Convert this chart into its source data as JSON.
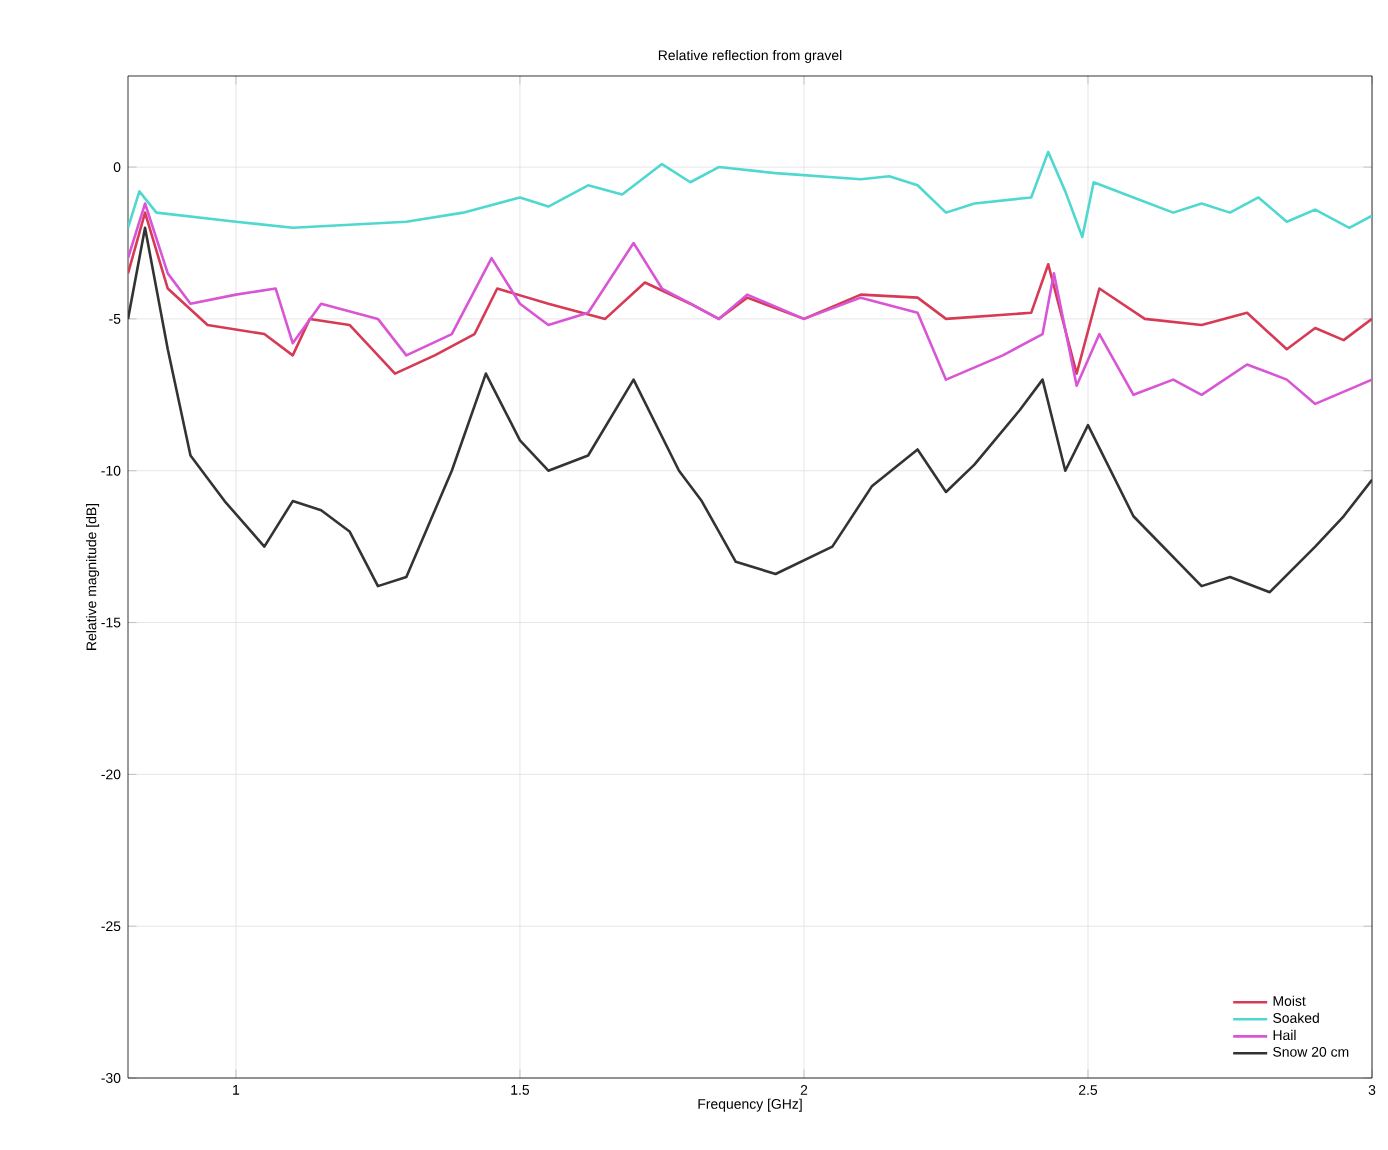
{
  "chart_data": {
    "type": "line",
    "title": "Relative reflection from gravel",
    "xlabel": "Frequency [GHz]",
    "ylabel": "Relative magnitude [dB]",
    "xlim": [
      0.81,
      3
    ],
    "xticks": [
      1,
      1.5,
      2,
      2.5,
      3
    ],
    "ylim": [
      -30,
      3
    ],
    "yticks": [
      -30,
      -25,
      -20,
      -15,
      -10,
      -5,
      0
    ],
    "grid": true,
    "legend": "bottom right",
    "line_style": "solid",
    "marker": "none",
    "series": [
      {
        "name": "Moist",
        "color": "#d63a55",
        "x": [
          0.81,
          0.84,
          0.88,
          0.95,
          1.05,
          1.1,
          1.13,
          1.2,
          1.28,
          1.35,
          1.42,
          1.46,
          1.55,
          1.65,
          1.72,
          1.8,
          1.85,
          1.9,
          2.0,
          2.1,
          2.2,
          2.25,
          2.4,
          2.43,
          2.48,
          2.52,
          2.6,
          2.7,
          2.78,
          2.85,
          2.9,
          2.95,
          3.0
        ],
        "values": [
          -3.5,
          -1.5,
          -4,
          -5.2,
          -5.5,
          -6.2,
          -5,
          -5.2,
          -6.8,
          -6.2,
          -5.5,
          -4,
          -4.5,
          -5,
          -3.8,
          -4.5,
          -5,
          -4.3,
          -5,
          -4.2,
          -4.3,
          -5,
          -4.8,
          -3.2,
          -6.8,
          -4,
          -5,
          -5.2,
          -4.8,
          -6,
          -5.3,
          -5.7,
          -5
        ]
      },
      {
        "name": "Soaked",
        "color": "#4fd8d0",
        "x": [
          0.81,
          0.83,
          0.86,
          1.0,
          1.1,
          1.3,
          1.4,
          1.5,
          1.55,
          1.62,
          1.68,
          1.75,
          1.8,
          1.85,
          1.95,
          2.1,
          2.15,
          2.2,
          2.25,
          2.3,
          2.4,
          2.43,
          2.46,
          2.49,
          2.51,
          2.58,
          2.65,
          2.7,
          2.75,
          2.8,
          2.85,
          2.9,
          2.96,
          3.0
        ],
        "values": [
          -2,
          -0.8,
          -1.5,
          -1.8,
          -2,
          -1.8,
          -1.5,
          -1,
          -1.3,
          -0.6,
          -0.9,
          0.1,
          -0.5,
          0,
          -0.2,
          -0.4,
          -0.3,
          -0.6,
          -1.5,
          -1.2,
          -1,
          0.5,
          -0.8,
          -2.3,
          -0.5,
          -1,
          -1.5,
          -1.2,
          -1.5,
          -1,
          -1.8,
          -1.4,
          -2,
          -1.6
        ]
      },
      {
        "name": "Hail",
        "color": "#d855d6",
        "x": [
          0.81,
          0.84,
          0.88,
          0.92,
          1.0,
          1.07,
          1.1,
          1.15,
          1.25,
          1.3,
          1.38,
          1.45,
          1.5,
          1.55,
          1.62,
          1.7,
          1.75,
          1.8,
          1.85,
          1.9,
          2.0,
          2.1,
          2.2,
          2.25,
          2.35,
          2.42,
          2.44,
          2.48,
          2.52,
          2.58,
          2.65,
          2.7,
          2.78,
          2.85,
          2.9,
          3.0
        ],
        "values": [
          -3,
          -1.2,
          -3.5,
          -4.5,
          -4.2,
          -4,
          -5.8,
          -4.5,
          -5,
          -6.2,
          -5.5,
          -3,
          -4.5,
          -5.2,
          -4.8,
          -2.5,
          -4,
          -4.5,
          -5,
          -4.2,
          -5,
          -4.3,
          -4.8,
          -7,
          -6.2,
          -5.5,
          -3.5,
          -7.2,
          -5.5,
          -7.5,
          -7,
          -7.5,
          -6.5,
          -7,
          -7.8,
          -7
        ]
      },
      {
        "name": "Snow 20 cm",
        "color": "#333333",
        "x": [
          0.81,
          0.84,
          0.88,
          0.92,
          0.98,
          1.05,
          1.1,
          1.15,
          1.2,
          1.25,
          1.3,
          1.38,
          1.44,
          1.5,
          1.55,
          1.62,
          1.7,
          1.78,
          1.82,
          1.88,
          1.95,
          2.05,
          2.12,
          2.2,
          2.25,
          2.3,
          2.38,
          2.42,
          2.46,
          2.5,
          2.58,
          2.7,
          2.75,
          2.82,
          2.9,
          2.95,
          3.0
        ],
        "values": [
          -5,
          -2,
          -6,
          -9.5,
          -11,
          -12.5,
          -11,
          -11.3,
          -12,
          -13.8,
          -13.5,
          -10,
          -6.8,
          -9,
          -10,
          -9.5,
          -7,
          -10,
          -11,
          -13,
          -13.4,
          -12.5,
          -10.5,
          -9.3,
          -10.7,
          -9.8,
          -8,
          -7,
          -10,
          -8.5,
          -11.5,
          -13.8,
          -13.5,
          -14,
          -12.5,
          -11.5,
          -10.3
        ]
      }
    ]
  }
}
